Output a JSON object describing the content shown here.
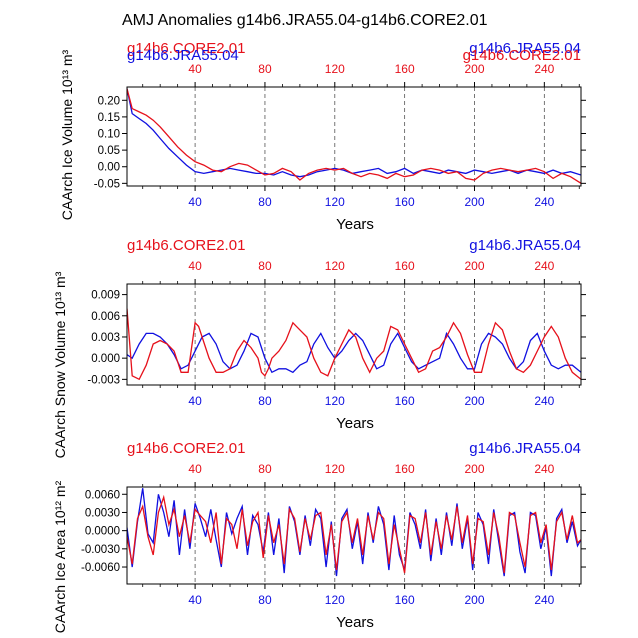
{
  "figure_title": "AMJ Anomalies g14b6.JRA55.04-g14b6.CORE2.01",
  "colors": {
    "run_a": "#e6111b",
    "run_b": "#1010e0",
    "frame": "#000000",
    "grid": "#555555"
  },
  "chart_data": [
    {
      "type": "line",
      "title": "",
      "left_label": "g14b6.CORE2.01",
      "right_label": "g14b6.JRA55.04",
      "left_label_overlap": "g14b6.JRA55.04",
      "right_label_overlap": "g14b6.CORE2.01",
      "ylabel": "CAArch Ice Volume 10¹³ m³",
      "xlabel": "Years",
      "xlim": [
        1,
        261
      ],
      "ylim": [
        -0.058,
        0.24
      ],
      "x_ticks": [
        40,
        80,
        120,
        160,
        200,
        240
      ],
      "x_tick_labels": [
        "40",
        "80",
        "120",
        "160",
        "200",
        "240"
      ],
      "y_ticks": [
        -0.05,
        0.0,
        0.05,
        0.1,
        0.15,
        0.2
      ],
      "y_tick_labels": [
        "-0.05",
        "0.00",
        "0.05",
        "0.10",
        "0.15",
        "0.20"
      ],
      "grid": "vertical dashed at x ticks",
      "legend": "none",
      "series": [
        {
          "name": "g14b6.CORE2.01",
          "color": "#e6111b",
          "x": [
            1,
            4,
            8,
            12,
            16,
            20,
            25,
            30,
            35,
            40,
            45,
            50,
            55,
            60,
            65,
            70,
            75,
            80,
            85,
            90,
            95,
            100,
            105,
            110,
            115,
            120,
            125,
            130,
            135,
            140,
            145,
            150,
            155,
            160,
            165,
            170,
            175,
            180,
            185,
            190,
            195,
            200,
            205,
            210,
            215,
            220,
            225,
            230,
            235,
            240,
            245,
            250,
            255,
            261
          ],
          "values": [
            0.235,
            0.175,
            0.165,
            0.155,
            0.14,
            0.12,
            0.09,
            0.06,
            0.035,
            0.015,
            0.005,
            -0.01,
            -0.015,
            0.0,
            0.01,
            0.005,
            -0.01,
            -0.025,
            -0.02,
            -0.005,
            -0.015,
            -0.04,
            -0.02,
            -0.01,
            -0.005,
            -0.01,
            -0.005,
            -0.02,
            -0.03,
            -0.02,
            -0.025,
            -0.035,
            -0.02,
            -0.03,
            -0.025,
            -0.01,
            -0.005,
            -0.01,
            -0.02,
            -0.015,
            -0.035,
            -0.04,
            -0.02,
            -0.01,
            -0.005,
            -0.01,
            -0.015,
            -0.01,
            -0.005,
            -0.015,
            -0.035,
            -0.02,
            -0.03,
            -0.05
          ]
        },
        {
          "name": "g14b6.JRA55.04",
          "color": "#1010e0",
          "x": [
            1,
            4,
            8,
            12,
            16,
            20,
            25,
            30,
            35,
            40,
            45,
            50,
            55,
            60,
            65,
            70,
            75,
            80,
            85,
            90,
            95,
            100,
            105,
            110,
            115,
            120,
            125,
            130,
            135,
            140,
            145,
            150,
            155,
            160,
            165,
            170,
            175,
            180,
            185,
            190,
            195,
            200,
            205,
            210,
            215,
            220,
            225,
            230,
            235,
            240,
            245,
            250,
            255,
            261
          ],
          "values": [
            0.235,
            0.16,
            0.145,
            0.13,
            0.11,
            0.085,
            0.055,
            0.03,
            0.005,
            -0.015,
            -0.02,
            -0.015,
            -0.01,
            -0.005,
            -0.01,
            -0.015,
            -0.02,
            -0.02,
            -0.025,
            -0.015,
            -0.025,
            -0.03,
            -0.025,
            -0.015,
            -0.01,
            -0.005,
            -0.01,
            -0.02,
            -0.015,
            -0.01,
            -0.005,
            -0.02,
            -0.015,
            -0.005,
            -0.02,
            -0.01,
            -0.015,
            -0.02,
            -0.01,
            -0.015,
            -0.02,
            -0.01,
            -0.015,
            -0.02,
            -0.015,
            -0.01,
            -0.02,
            -0.01,
            -0.015,
            -0.02,
            -0.01,
            -0.02,
            -0.015,
            -0.025
          ]
        }
      ]
    },
    {
      "type": "line",
      "title": "",
      "left_label": "g14b6.CORE2.01",
      "right_label": "g14b6.JRA55.04",
      "left_label_overlap": "",
      "right_label_overlap": "",
      "ylabel": "CAArch Snow Volume 10¹³ m³",
      "xlabel": "Years",
      "xlim": [
        1,
        261
      ],
      "ylim": [
        -0.0038,
        0.0105
      ],
      "x_ticks": [
        40,
        80,
        120,
        160,
        200,
        240
      ],
      "x_tick_labels": [
        "40",
        "80",
        "120",
        "160",
        "200",
        "240"
      ],
      "y_ticks": [
        -0.003,
        0.0,
        0.003,
        0.006,
        0.009
      ],
      "y_tick_labels": [
        "-0.003",
        "0.000",
        "0.003",
        "0.006",
        "0.009"
      ],
      "grid": "vertical dashed at x ticks",
      "legend": "none",
      "series": [
        {
          "name": "g14b6.CORE2.01",
          "color": "#e6111b",
          "x": [
            1,
            4,
            8,
            12,
            16,
            20,
            24,
            28,
            32,
            36,
            38,
            40,
            42,
            44,
            48,
            52,
            56,
            60,
            64,
            68,
            72,
            76,
            78,
            80,
            82,
            84,
            88,
            92,
            96,
            100,
            104,
            108,
            112,
            116,
            120,
            124,
            128,
            132,
            136,
            140,
            144,
            148,
            152,
            156,
            160,
            164,
            168,
            172,
            176,
            180,
            184,
            188,
            192,
            196,
            200,
            204,
            208,
            212,
            216,
            220,
            224,
            228,
            232,
            236,
            240,
            244,
            248,
            252,
            256,
            261
          ],
          "values": [
            0.007,
            -0.0025,
            -0.003,
            -0.001,
            0.002,
            0.0025,
            0.002,
            0.001,
            -0.002,
            -0.002,
            0.0015,
            0.005,
            0.0045,
            0.003,
            0.0,
            -0.002,
            -0.002,
            -0.0015,
            0.001,
            0.0025,
            0.0015,
            0.0,
            -0.002,
            -0.0025,
            -0.0015,
            0.0,
            0.001,
            0.0025,
            0.005,
            0.004,
            0.003,
            0.0,
            -0.002,
            -0.0025,
            0.0,
            0.002,
            0.004,
            0.003,
            0.0,
            -0.002,
            0.0,
            0.001,
            0.0045,
            0.004,
            0.002,
            0.0,
            -0.002,
            -0.0015,
            0.001,
            0.0015,
            0.003,
            0.005,
            0.0035,
            0.0005,
            -0.002,
            -0.002,
            0.002,
            0.005,
            0.004,
            0.001,
            -0.0015,
            -0.002,
            -0.001,
            0.001,
            0.003,
            0.0045,
            0.003,
            0.0,
            -0.002,
            -0.003
          ]
        },
        {
          "name": "g14b6.JRA55.04",
          "color": "#1010e0",
          "x": [
            1,
            4,
            8,
            12,
            16,
            20,
            24,
            28,
            32,
            36,
            40,
            44,
            48,
            52,
            56,
            60,
            64,
            68,
            72,
            76,
            80,
            84,
            88,
            92,
            96,
            100,
            104,
            108,
            112,
            116,
            120,
            124,
            128,
            132,
            136,
            140,
            144,
            148,
            152,
            156,
            160,
            164,
            168,
            172,
            176,
            180,
            184,
            188,
            192,
            196,
            200,
            204,
            208,
            212,
            216,
            220,
            224,
            228,
            232,
            236,
            240,
            244,
            248,
            252,
            256,
            261
          ],
          "values": [
            0.0005,
            0.0,
            0.002,
            0.0035,
            0.0035,
            0.003,
            0.002,
            0.0005,
            -0.0015,
            -0.001,
            0.001,
            0.003,
            0.0035,
            0.002,
            -0.0005,
            -0.0015,
            -0.001,
            0.001,
            0.0035,
            0.003,
            0.0,
            -0.002,
            -0.0015,
            -0.0015,
            -0.002,
            -0.001,
            -0.0005,
            0.002,
            0.0035,
            0.0015,
            0.0,
            0.001,
            0.0025,
            0.0035,
            0.0025,
            0.0005,
            -0.0015,
            -0.001,
            0.002,
            0.0035,
            0.0015,
            -0.0005,
            -0.0015,
            -0.001,
            -0.0005,
            0.0,
            0.0035,
            0.002,
            0.0,
            -0.0015,
            -0.0015,
            0.002,
            0.0035,
            0.003,
            0.002,
            0.0,
            -0.0015,
            -0.0005,
            0.0025,
            0.0035,
            0.001,
            -0.001,
            -0.0015,
            -0.001,
            -0.001,
            -0.002
          ]
        }
      ]
    },
    {
      "type": "line",
      "title": "",
      "left_label": "g14b6.CORE2.01",
      "right_label": "g14b6.JRA55.04",
      "left_label_overlap": "",
      "right_label_overlap": "",
      "ylabel": "CAArch Ice Area 10¹² m²",
      "xlabel": "Years",
      "xlim": [
        1,
        261
      ],
      "ylim": [
        -0.0088,
        0.0072
      ],
      "x_ticks": [
        40,
        80,
        120,
        160,
        200,
        240
      ],
      "x_tick_labels": [
        "40",
        "80",
        "120",
        "160",
        "200",
        "240"
      ],
      "y_ticks": [
        -0.006,
        -0.003,
        0.0,
        0.003,
        0.006
      ],
      "y_tick_labels": [
        "-0.0060",
        "-0.0030",
        "0.0000",
        "0.0030",
        "0.0060"
      ],
      "grid": "vertical dashed at x ticks",
      "legend": "none",
      "series": [
        {
          "name": "g14b6.CORE2.01",
          "color": "#e6111b",
          "x": [
            1,
            4,
            7,
            10,
            13,
            16,
            19,
            22,
            25,
            28,
            31,
            34,
            37,
            40,
            43,
            46,
            49,
            52,
            55,
            58,
            61,
            64,
            67,
            70,
            73,
            76,
            79,
            82,
            85,
            88,
            91,
            94,
            97,
            100,
            103,
            106,
            109,
            112,
            115,
            118,
            121,
            124,
            127,
            130,
            133,
            136,
            139,
            142,
            145,
            148,
            151,
            154,
            157,
            160,
            163,
            166,
            169,
            172,
            175,
            178,
            181,
            184,
            187,
            190,
            193,
            196,
            199,
            202,
            205,
            208,
            211,
            214,
            217,
            220,
            223,
            226,
            229,
            232,
            235,
            238,
            241,
            244,
            247,
            250,
            253,
            256,
            259,
            261
          ],
          "values": [
            -0.001,
            -0.0055,
            0.002,
            0.004,
            -0.001,
            -0.004,
            0.003,
            0.0055,
            0.001,
            0.0035,
            -0.001,
            0.0025,
            -0.002,
            0.0035,
            0.0025,
            0.0015,
            -0.002,
            0.003,
            -0.0055,
            0.002,
            0.001,
            -0.003,
            0.0035,
            -0.0025,
            0.0015,
            0.003,
            -0.0045,
            0.0025,
            -0.002,
            0.001,
            -0.0055,
            0.0035,
            0.002,
            -0.0035,
            0.002,
            -0.0015,
            0.0025,
            0.003,
            -0.004,
            0.001,
            -0.0065,
            0.0015,
            0.003,
            -0.002,
            0.002,
            -0.004,
            0.0025,
            -0.0015,
            0.003,
            0.002,
            -0.0055,
            0.001,
            -0.003,
            -0.007,
            0.0025,
            0.002,
            -0.002,
            0.003,
            -0.004,
            0.0015,
            -0.003,
            0.0025,
            -0.0015,
            0.004,
            -0.002,
            0.0025,
            -0.0055,
            0.002,
            0.0015,
            -0.004,
            0.003,
            -0.001,
            -0.007,
            0.003,
            0.0025,
            -0.002,
            -0.006,
            0.0025,
            0.003,
            -0.002,
            0.001,
            -0.0065,
            0.0015,
            0.003,
            -0.0015,
            0.0025,
            -0.002,
            -0.0015
          ]
        },
        {
          "name": "g14b6.JRA55.04",
          "color": "#1010e0",
          "x": [
            1,
            4,
            7,
            10,
            13,
            16,
            19,
            22,
            25,
            28,
            31,
            34,
            37,
            40,
            43,
            46,
            49,
            52,
            55,
            58,
            61,
            64,
            67,
            70,
            73,
            76,
            79,
            82,
            85,
            88,
            91,
            94,
            97,
            100,
            103,
            106,
            109,
            112,
            115,
            118,
            121,
            124,
            127,
            130,
            133,
            136,
            139,
            142,
            145,
            148,
            151,
            154,
            157,
            160,
            163,
            166,
            169,
            172,
            175,
            178,
            181,
            184,
            187,
            190,
            193,
            196,
            199,
            202,
            205,
            208,
            211,
            214,
            217,
            220,
            223,
            226,
            229,
            232,
            235,
            238,
            241,
            244,
            247,
            250,
            253,
            256,
            259,
            261
          ],
          "values": [
            0.0005,
            -0.006,
            0.0015,
            0.007,
            -0.0005,
            -0.002,
            0.006,
            0.003,
            -0.001,
            0.005,
            -0.004,
            0.0035,
            -0.003,
            0.0045,
            0.002,
            -0.001,
            0.0035,
            -0.0015,
            -0.006,
            0.003,
            -0.0005,
            0.002,
            0.004,
            -0.004,
            0.0025,
            0.001,
            -0.0035,
            0.003,
            -0.004,
            0.002,
            -0.007,
            0.004,
            0.0015,
            -0.004,
            0.0025,
            -0.0025,
            0.0035,
            0.002,
            -0.006,
            0.0015,
            -0.0075,
            0.002,
            0.0035,
            -0.003,
            0.0015,
            -0.0055,
            0.003,
            -0.002,
            0.004,
            0.001,
            -0.0065,
            0.0025,
            -0.004,
            -0.0065,
            0.003,
            0.001,
            -0.003,
            0.0035,
            -0.005,
            0.002,
            -0.004,
            0.003,
            -0.0025,
            0.0045,
            -0.003,
            0.002,
            -0.0065,
            0.003,
            0.001,
            -0.0055,
            0.0035,
            -0.002,
            -0.0075,
            0.0025,
            0.003,
            -0.0035,
            -0.007,
            0.003,
            0.0025,
            -0.003,
            0.0005,
            -0.0075,
            0.002,
            0.0035,
            -0.002,
            0.0015,
            -0.0025,
            -0.0015
          ]
        }
      ]
    }
  ]
}
